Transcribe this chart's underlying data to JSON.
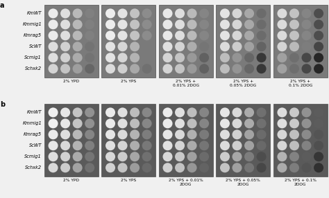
{
  "panel_a_label": "a",
  "panel_b_label": "b",
  "row_labels_a": [
    "KmWT",
    "Kmmig1",
    "Kmrag5",
    "ScWT",
    "Scmig1",
    "Schxk2"
  ],
  "row_labels_b": [
    "KmWT",
    "Kmmig1",
    "Kmrag5",
    "ScWT",
    "Scmig1",
    "Schxk2"
  ],
  "col_labels_a": [
    "2% YPD",
    "2% YPS",
    "2% YPS +\n0.01% 2DOG",
    "2% YPS +\n0.05% 2DOG",
    "2% YPS +\n0.1% 2DOG"
  ],
  "col_labels_b": [
    "2% YPD",
    "2% YPS",
    "2% YPS + 0.01%\n2DOG",
    "2% YPS + 0.05%\n2DOG",
    "2% YPS + 0.1%\n2DOG"
  ],
  "figure_bg": "#f0f0f0",
  "plate_bg_a": "#7a7a7a",
  "plate_bg_b": "#5a5a5a",
  "label_fontsize": 4.8,
  "panel_label_fontsize": 7,
  "col_label_fontsize": 4.2,
  "num_rows": 6,
  "num_conditions": 5,
  "num_spot_cols": 4
}
